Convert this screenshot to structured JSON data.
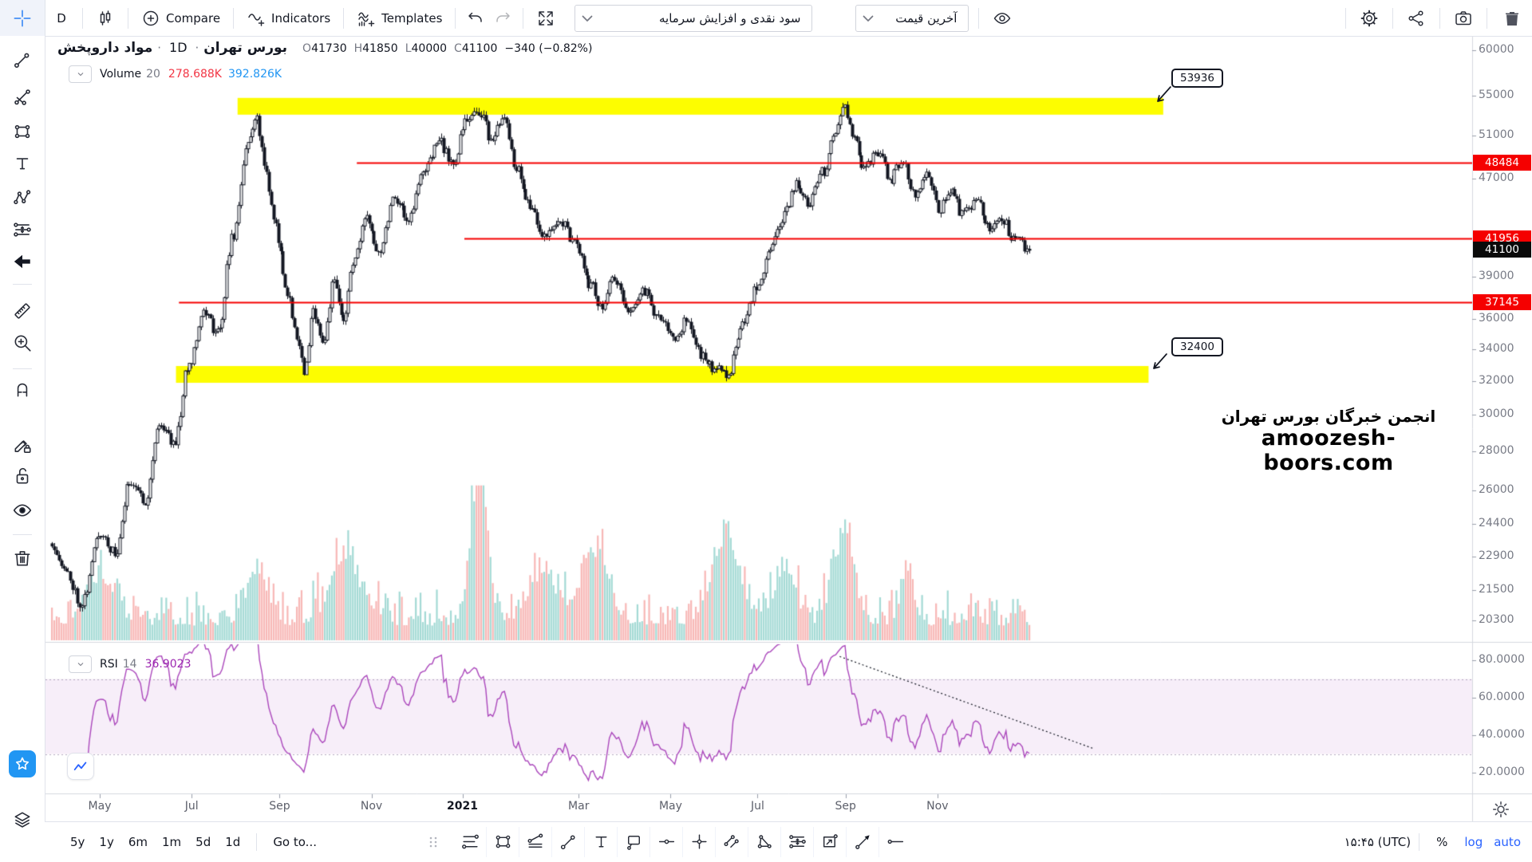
{
  "topbar": {
    "interval": "D",
    "compare_label": "Compare",
    "indicators_label": "Indicators",
    "templates_label": "Templates",
    "symbol_dropdown": "سود نقدی و افزایش سرمایه",
    "price_mode_dropdown": "آخرین قیمت"
  },
  "legend": {
    "symbol": "مواد داروپخش",
    "separator": "·",
    "interval": "1D",
    "exchange": "بورس تهران",
    "ohlc_fields": [
      {
        "k": "O",
        "v": "41730"
      },
      {
        "k": "H",
        "v": "41850"
      },
      {
        "k": "L",
        "v": "40000"
      },
      {
        "k": "C",
        "v": "41100"
      }
    ],
    "change": "−340 (−0.82%)"
  },
  "volume_legend": {
    "label": "Volume",
    "length": "20",
    "value": "278.688K",
    "ma": "392.826K"
  },
  "rsi_legend": {
    "label": "RSI",
    "length": "14",
    "value": "36.9023"
  },
  "watermark": {
    "line1": "انجمن خبرگان بورس تهران",
    "line2": "amoozesh-boors.com"
  },
  "bottombar": {
    "ranges": [
      "5y",
      "1y",
      "6m",
      "1m",
      "5d",
      "1d"
    ],
    "goto_label": "Go to...",
    "clock": "۱۵:۴۵ (UTC)",
    "percent_label": "%",
    "log_label": "log",
    "auto_label": "auto"
  },
  "sidebar_tools": [
    "trendline",
    "gann",
    "shapes",
    "text",
    "pattern",
    "prediction",
    "back-arrow",
    "ruler",
    "zoom-in",
    "magnet",
    "draw-lock",
    "lock",
    "hide-eye",
    "remove-trash"
  ],
  "bottom_tools": [
    "hlines-tool",
    "rect-tool",
    "multiline-tool",
    "trendline-tool",
    "text-tool",
    "callout-tool",
    "hray-tool",
    "cross-tool",
    "channel-tool",
    "triangle-tool",
    "fibproj-tool",
    "box-tool",
    "arrow-tool",
    "ray-tool"
  ],
  "chart_data": {
    "type": "candlestick",
    "symbol": "مواد داروپخش",
    "exchange": "بورس تهران",
    "interval": "1D",
    "scale": "log",
    "ohlc": {
      "open": 41730,
      "high": 41850,
      "low": 40000,
      "close": 41100,
      "change": "−340 (−0.82%)"
    },
    "volume": {
      "ma_length": 20,
      "current": "278.688K",
      "ma": "392.826K"
    },
    "price_axis_ticks": [
      60000,
      55000,
      51000,
      47000,
      39000,
      36000,
      34000,
      32000,
      30000,
      28000,
      26000,
      24400,
      22900,
      21500,
      20300
    ],
    "price_axis_calibration": {
      "tick_top": 60000,
      "tick_bottom": 20300
    },
    "time_axis_labels": [
      {
        "label": "May",
        "t": 0.049
      },
      {
        "label": "Jul",
        "t": 0.143
      },
      {
        "label": "Sep",
        "t": 0.233
      },
      {
        "label": "Nov",
        "t": 0.327
      },
      {
        "label": "2021",
        "t": 0.42,
        "major": true
      },
      {
        "label": "Mar",
        "t": 0.539
      },
      {
        "label": "May",
        "t": 0.633
      },
      {
        "label": "Jul",
        "t": 0.722
      },
      {
        "label": "Sep",
        "t": 0.812
      },
      {
        "label": "Nov",
        "t": 0.906
      }
    ],
    "levels": {
      "lines": [
        {
          "value": 48484,
          "from_t": 0.312
        },
        {
          "value": 41956,
          "from_t": 0.422
        },
        {
          "value": 37145,
          "from_t": 0.13
        }
      ],
      "zones": [
        {
          "value": 53936,
          "from_t": 0.19,
          "to_t": 1.137
        },
        {
          "value": 32400,
          "from_t": 0.127,
          "to_t": 1.122
        }
      ],
      "last_price": 41100
    },
    "rsi": {
      "period": 14,
      "value": 36.9023,
      "upper_band": 70,
      "lower_band": 30,
      "ticks_labels": [
        "80.0000",
        "60.0000",
        "40.0000",
        "20.0000"
      ],
      "ticks_values": [
        80,
        60,
        40,
        20
      ],
      "trendline": {
        "from": {
          "t": 0.806,
          "v": 82
        },
        "to": {
          "t": 1.065,
          "v": 33
        }
      }
    },
    "price_path": [
      [
        0.0,
        23500
      ],
      [
        0.015,
        22200
      ],
      [
        0.03,
        21000
      ],
      [
        0.05,
        24000
      ],
      [
        0.065,
        23000
      ],
      [
        0.08,
        26500
      ],
      [
        0.095,
        25500
      ],
      [
        0.11,
        29500
      ],
      [
        0.125,
        28500
      ],
      [
        0.14,
        33000
      ],
      [
        0.155,
        36500
      ],
      [
        0.17,
        35000
      ],
      [
        0.185,
        42000
      ],
      [
        0.2,
        50000
      ],
      [
        0.209,
        53000
      ],
      [
        0.218,
        48000
      ],
      [
        0.228,
        43000
      ],
      [
        0.24,
        38000
      ],
      [
        0.25,
        35000
      ],
      [
        0.258,
        32600
      ],
      [
        0.268,
        36500
      ],
      [
        0.278,
        34500
      ],
      [
        0.288,
        38500
      ],
      [
        0.298,
        36000
      ],
      [
        0.31,
        40500
      ],
      [
        0.322,
        43500
      ],
      [
        0.335,
        41000
      ],
      [
        0.35,
        45500
      ],
      [
        0.365,
        43500
      ],
      [
        0.38,
        47500
      ],
      [
        0.395,
        50500
      ],
      [
        0.41,
        48500
      ],
      [
        0.425,
        52500
      ],
      [
        0.437,
        53500
      ],
      [
        0.45,
        50500
      ],
      [
        0.462,
        52500
      ],
      [
        0.475,
        48000
      ],
      [
        0.49,
        44500
      ],
      [
        0.505,
        42000
      ],
      [
        0.52,
        43500
      ],
      [
        0.535,
        41500
      ],
      [
        0.55,
        38500
      ],
      [
        0.562,
        37000
      ],
      [
        0.575,
        38800
      ],
      [
        0.59,
        36500
      ],
      [
        0.605,
        38000
      ],
      [
        0.62,
        36200
      ],
      [
        0.635,
        34800
      ],
      [
        0.65,
        35800
      ],
      [
        0.665,
        33500
      ],
      [
        0.68,
        32700
      ],
      [
        0.692,
        32500
      ],
      [
        0.705,
        35500
      ],
      [
        0.72,
        38000
      ],
      [
        0.735,
        41000
      ],
      [
        0.75,
        44000
      ],
      [
        0.762,
        46500
      ],
      [
        0.775,
        44800
      ],
      [
        0.788,
        47500
      ],
      [
        0.8,
        50500
      ],
      [
        0.81,
        54300
      ],
      [
        0.82,
        50500
      ],
      [
        0.832,
        47800
      ],
      [
        0.845,
        49500
      ],
      [
        0.858,
        47000
      ],
      [
        0.87,
        48800
      ],
      [
        0.882,
        45800
      ],
      [
        0.895,
        47200
      ],
      [
        0.908,
        44300
      ],
      [
        0.92,
        46000
      ],
      [
        0.932,
        43800
      ],
      [
        0.945,
        45200
      ],
      [
        0.958,
        42800
      ],
      [
        0.97,
        43800
      ],
      [
        0.985,
        41800
      ],
      [
        1.0,
        41100
      ]
    ]
  }
}
